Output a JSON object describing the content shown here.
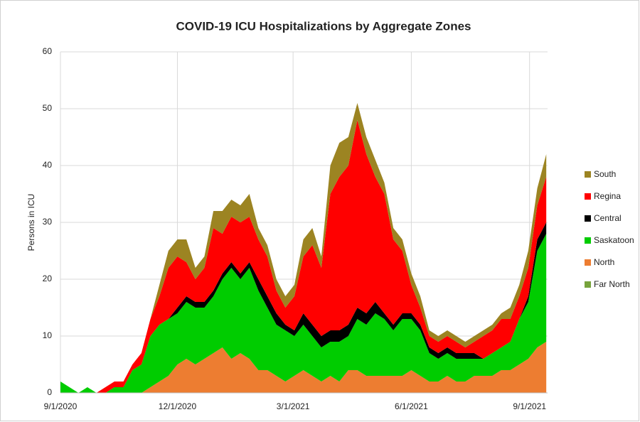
{
  "chart_data": {
    "type": "stacked_area",
    "title": "COVID-19 ICU Hospitalizations by Aggregate Zones",
    "y_label": "Persons in ICU",
    "x": [
      "9/1/2020",
      "9/8/2020",
      "9/15/2020",
      "9/22/2020",
      "9/29/2020",
      "10/6/2020",
      "10/13/2020",
      "10/20/2020",
      "10/27/2020",
      "11/3/2020",
      "11/10/2020",
      "11/17/2020",
      "11/24/2020",
      "12/1/2020",
      "12/8/2020",
      "12/15/2020",
      "12/22/2020",
      "12/29/2020",
      "1/5/2021",
      "1/12/2021",
      "1/19/2021",
      "1/26/2021",
      "2/2/2021",
      "2/9/2021",
      "2/16/2021",
      "2/23/2021",
      "3/2/2021",
      "3/9/2021",
      "3/16/2021",
      "3/23/2021",
      "3/30/2021",
      "4/6/2021",
      "4/13/2021",
      "4/20/2021",
      "4/27/2021",
      "5/4/2021",
      "5/11/2021",
      "5/18/2021",
      "5/25/2021",
      "6/1/2021",
      "6/8/2021",
      "6/15/2021",
      "6/22/2021",
      "6/29/2021",
      "7/6/2021",
      "7/13/2021",
      "7/20/2021",
      "7/27/2021",
      "8/3/2021",
      "8/10/2021",
      "8/17/2021",
      "8/24/2021",
      "8/31/2021",
      "9/7/2021",
      "9/14/2021"
    ],
    "xlim": [
      "9/1/2020",
      "9/15/2021"
    ],
    "xticks": [
      "9/1/2020",
      "12/1/2020",
      "3/1/2021",
      "6/1/2021",
      "9/1/2021"
    ],
    "ylim": [
      0,
      60
    ],
    "yticks": [
      0,
      10,
      20,
      30,
      40,
      50,
      60
    ],
    "grid": true,
    "legend": "right",
    "series": [
      {
        "name": "Far North",
        "color": "#77a33c",
        "values": [
          0,
          0,
          0,
          0,
          0,
          0,
          0,
          0,
          0,
          0,
          0,
          0,
          0,
          0,
          0,
          0,
          0,
          0,
          0,
          0,
          0,
          0,
          0,
          0,
          0,
          0,
          0,
          0,
          0,
          0,
          0,
          0,
          0,
          0,
          0,
          0,
          0,
          0,
          0,
          0,
          0,
          0,
          0,
          0,
          0,
          0,
          0,
          0,
          0,
          0,
          0,
          0,
          0,
          0,
          0
        ]
      },
      {
        "name": "North",
        "color": "#ed7d31",
        "values": [
          0,
          0,
          0,
          0,
          0,
          0,
          0,
          0,
          0,
          0,
          1,
          2,
          3,
          5,
          6,
          5,
          6,
          7,
          8,
          6,
          7,
          6,
          4,
          4,
          3,
          2,
          3,
          4,
          3,
          2,
          3,
          2,
          4,
          4,
          3,
          3,
          3,
          3,
          3,
          4,
          3,
          2,
          2,
          3,
          2,
          2,
          3,
          3,
          3,
          4,
          4,
          5,
          6,
          8,
          9
        ]
      },
      {
        "name": "Saskatoon",
        "color": "#00cc00",
        "values": [
          2,
          1,
          0,
          1,
          0,
          0,
          1,
          1,
          4,
          5,
          9,
          10,
          10,
          9,
          10,
          10,
          9,
          10,
          12,
          16,
          13,
          16,
          14,
          11,
          9,
          9,
          7,
          8,
          7,
          6,
          6,
          7,
          6,
          9,
          9,
          11,
          10,
          8,
          10,
          9,
          8,
          5,
          4,
          4,
          4,
          4,
          3,
          3,
          4,
          4,
          5,
          8,
          10,
          17,
          19
        ]
      },
      {
        "name": "Central",
        "color": "#000000",
        "values": [
          0,
          0,
          0,
          0,
          0,
          0,
          0,
          0,
          0,
          0,
          0,
          0,
          0,
          1,
          1,
          1,
          1,
          1,
          1,
          1,
          1,
          1,
          2,
          2,
          2,
          1,
          1,
          2,
          2,
          2,
          2,
          2,
          2,
          2,
          2,
          2,
          1,
          1,
          1,
          1,
          1,
          1,
          1,
          1,
          1,
          1,
          1,
          0,
          0,
          0,
          0,
          0,
          1,
          2,
          2
        ]
      },
      {
        "name": "Regina",
        "color": "#ff0000",
        "values": [
          0,
          0,
          0,
          0,
          0,
          1,
          1,
          1,
          1,
          2,
          3,
          5,
          9,
          9,
          6,
          4,
          6,
          11,
          7,
          8,
          9,
          8,
          7,
          7,
          4,
          3,
          6,
          10,
          14,
          12,
          24,
          27,
          28,
          33,
          28,
          22,
          21,
          15,
          11,
          5,
          3,
          2,
          2,
          2,
          2,
          1,
          2,
          4,
          4,
          5,
          4,
          4,
          5,
          6,
          8
        ]
      },
      {
        "name": "South",
        "color": "#9c8422",
        "values": [
          0,
          0,
          0,
          0,
          0,
          0,
          0,
          0,
          0,
          0,
          0,
          2,
          3,
          3,
          4,
          2,
          2,
          3,
          4,
          3,
          3,
          4,
          2,
          2,
          2,
          2,
          2,
          3,
          3,
          2,
          5,
          6,
          5,
          3,
          3,
          3,
          2,
          2,
          2,
          2,
          2,
          1,
          1,
          1,
          1,
          1,
          1,
          1,
          1,
          1,
          2,
          2,
          3,
          3,
          4
        ]
      }
    ]
  }
}
